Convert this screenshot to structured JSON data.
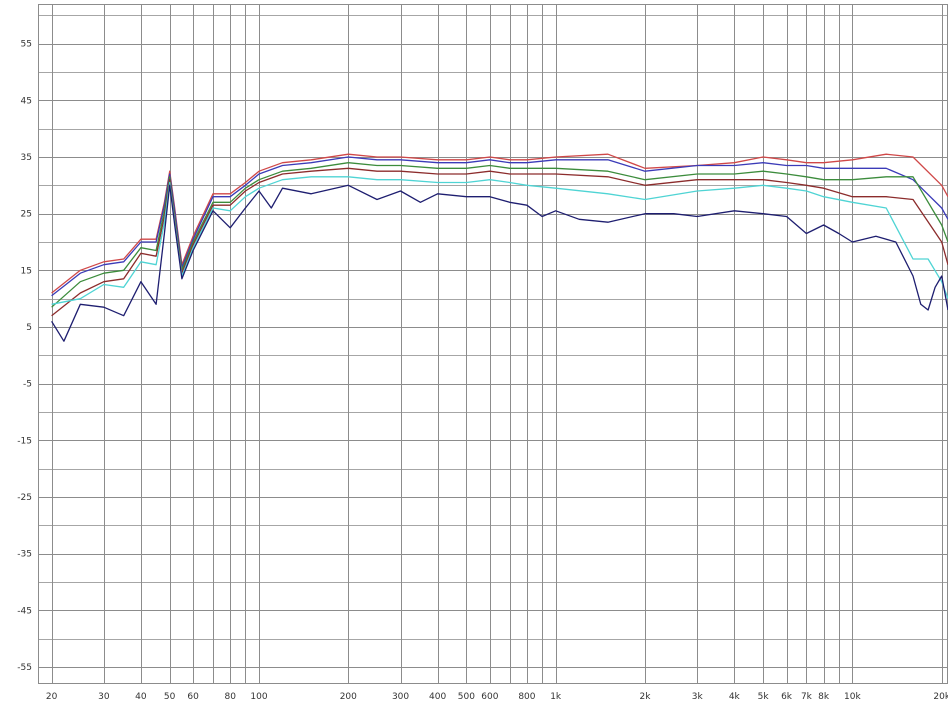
{
  "chart_data": {
    "type": "line",
    "title": "",
    "xlabel": "",
    "ylabel": "",
    "x_scale": "log",
    "xlim": [
      18,
      21000
    ],
    "ylim": [
      -58,
      62
    ],
    "grid": true,
    "legend": "none",
    "x_ticks": [
      {
        "value": 20,
        "label": "20"
      },
      {
        "value": 30,
        "label": "30"
      },
      {
        "value": 40,
        "label": "40"
      },
      {
        "value": 50,
        "label": "50"
      },
      {
        "value": 60,
        "label": "60"
      },
      {
        "value": 80,
        "label": "80"
      },
      {
        "value": 100,
        "label": "100"
      },
      {
        "value": 200,
        "label": "200"
      },
      {
        "value": 300,
        "label": "300"
      },
      {
        "value": 400,
        "label": "400"
      },
      {
        "value": 500,
        "label": "500"
      },
      {
        "value": 600,
        "label": "600"
      },
      {
        "value": 800,
        "label": "800"
      },
      {
        "value": 1000,
        "label": "1k"
      },
      {
        "value": 2000,
        "label": "2k"
      },
      {
        "value": 3000,
        "label": "3k"
      },
      {
        "value": 4000,
        "label": "4k"
      },
      {
        "value": 5000,
        "label": "5k"
      },
      {
        "value": 6000,
        "label": "6k"
      },
      {
        "value": 7000,
        "label": "7k"
      },
      {
        "value": 8000,
        "label": "8k"
      },
      {
        "value": 10000,
        "label": "10k"
      },
      {
        "value": 20000,
        "label": "20k"
      }
    ],
    "x_grid": [
      20,
      30,
      40,
      50,
      60,
      70,
      80,
      90,
      100,
      200,
      300,
      400,
      500,
      600,
      700,
      800,
      900,
      1000,
      2000,
      3000,
      4000,
      5000,
      6000,
      7000,
      8000,
      9000,
      10000,
      20000
    ],
    "y_ticks": [
      {
        "value": 55,
        "label": "55"
      },
      {
        "value": 45,
        "label": "45"
      },
      {
        "value": 35,
        "label": "35"
      },
      {
        "value": 25,
        "label": "25"
      },
      {
        "value": 15,
        "label": "15"
      },
      {
        "value": 5,
        "label": "5"
      },
      {
        "value": -5,
        "label": "-5"
      },
      {
        "value": -15,
        "label": "-15"
      },
      {
        "value": -25,
        "label": "-25"
      },
      {
        "value": -35,
        "label": "-35"
      },
      {
        "value": -45,
        "label": "-45"
      },
      {
        "value": -55,
        "label": "-55"
      }
    ],
    "y_grid": [
      60,
      55,
      50,
      45,
      40,
      35,
      30,
      25,
      20,
      15,
      10,
      5,
      0,
      -5,
      -10,
      -15,
      -20,
      -25,
      -30,
      -35,
      -40,
      -45,
      -50,
      -55
    ],
    "series": [
      {
        "color": "#d04848",
        "x": [
          20,
          25,
          30,
          35,
          40,
          45,
          48,
          50,
          52,
          55,
          60,
          70,
          80,
          90,
          100,
          120,
          150,
          200,
          250,
          300,
          400,
          500,
          600,
          700,
          800,
          1000,
          1500,
          2000,
          3000,
          4000,
          5000,
          6000,
          7000,
          8000,
          10000,
          13000,
          16000,
          20000,
          21000
        ],
        "y": [
          11,
          15,
          16.5,
          17,
          20.5,
          20.5,
          27,
          32.5,
          26,
          16,
          21,
          28.5,
          28.5,
          30.5,
          32.5,
          34,
          34.5,
          35.5,
          35,
          35,
          34.5,
          34.5,
          35,
          34.5,
          34.5,
          35,
          35.5,
          33,
          33.5,
          34,
          35,
          34.5,
          34,
          34,
          34.5,
          35.5,
          35,
          30,
          28
        ]
      },
      {
        "color": "#3b3bb8",
        "x": [
          20,
          25,
          30,
          35,
          40,
          45,
          48,
          50,
          52,
          55,
          60,
          70,
          80,
          90,
          100,
          120,
          150,
          200,
          250,
          300,
          400,
          500,
          600,
          700,
          800,
          1000,
          1500,
          2000,
          3000,
          4000,
          5000,
          6000,
          7000,
          8000,
          10000,
          13000,
          16000,
          20000,
          21000
        ],
        "y": [
          10.5,
          14.5,
          16,
          16.5,
          20,
          20,
          26.5,
          32,
          25.5,
          15.5,
          20.5,
          28,
          28,
          30,
          32,
          33.5,
          34,
          35,
          34.5,
          34.5,
          34,
          34,
          34.5,
          34,
          34,
          34.5,
          34.5,
          32.5,
          33.5,
          33.5,
          34,
          33.5,
          33.5,
          33,
          33,
          33,
          31,
          26,
          24
        ]
      },
      {
        "color": "#3c8c3c",
        "x": [
          20,
          25,
          30,
          35,
          40,
          45,
          48,
          50,
          52,
          55,
          60,
          70,
          80,
          90,
          100,
          120,
          150,
          200,
          250,
          300,
          400,
          500,
          600,
          700,
          800,
          1000,
          1500,
          2000,
          3000,
          4000,
          5000,
          6000,
          7000,
          8000,
          10000,
          13000,
          16000,
          20000,
          21000
        ],
        "y": [
          8.5,
          13,
          14.5,
          15,
          19,
          18.5,
          25.5,
          31.5,
          24.5,
          15,
          20,
          27,
          27,
          29.5,
          31,
          32.5,
          33,
          34,
          33.5,
          33.5,
          33,
          33,
          33.5,
          33,
          33,
          33,
          32.5,
          31,
          32,
          32,
          32.5,
          32,
          31.5,
          31,
          31,
          31.5,
          31.5,
          23,
          20
        ]
      },
      {
        "color": "#8c2c2c",
        "x": [
          20,
          25,
          30,
          35,
          40,
          45,
          48,
          50,
          52,
          55,
          60,
          70,
          80,
          90,
          100,
          120,
          150,
          200,
          250,
          300,
          400,
          500,
          600,
          700,
          800,
          1000,
          1500,
          2000,
          3000,
          4000,
          5000,
          6000,
          7000,
          8000,
          10000,
          13000,
          16000,
          20000,
          21000
        ],
        "y": [
          7,
          11,
          13,
          13.5,
          18,
          17.5,
          24.5,
          31,
          24,
          14.5,
          19.5,
          26.5,
          26.5,
          29,
          30.5,
          32,
          32.5,
          33,
          32.5,
          32.5,
          32,
          32,
          32.5,
          32,
          32,
          32,
          31.5,
          30,
          31,
          31,
          31,
          30.5,
          30,
          29.5,
          28,
          28,
          27.5,
          20,
          16
        ]
      },
      {
        "color": "#4fd4d4",
        "x": [
          20,
          25,
          30,
          35,
          40,
          45,
          48,
          50,
          52,
          55,
          60,
          70,
          80,
          90,
          100,
          120,
          150,
          200,
          250,
          300,
          400,
          500,
          600,
          700,
          800,
          1000,
          1500,
          2000,
          3000,
          4000,
          5000,
          6000,
          7000,
          8000,
          10000,
          13000,
          16000,
          18000,
          20000,
          21000
        ],
        "y": [
          9,
          10,
          12.5,
          12,
          16.5,
          16,
          23.5,
          30.5,
          23.5,
          14,
          19,
          26,
          25.5,
          28,
          29.5,
          31,
          31.5,
          31.5,
          31,
          31,
          30.5,
          30.5,
          31,
          30.5,
          30,
          29.5,
          28.5,
          27.5,
          29,
          29.5,
          30,
          29.5,
          29,
          28,
          27,
          26,
          17,
          17,
          13,
          10
        ]
      },
      {
        "color": "#1e1e70",
        "x": [
          20,
          22,
          25,
          30,
          35,
          40,
          45,
          48,
          50,
          52,
          55,
          60,
          70,
          80,
          90,
          100,
          110,
          120,
          150,
          200,
          250,
          300,
          350,
          400,
          500,
          600,
          700,
          800,
          900,
          1000,
          1200,
          1500,
          2000,
          2500,
          3000,
          4000,
          5000,
          6000,
          7000,
          8000,
          9000,
          10000,
          12000,
          14000,
          16000,
          17000,
          18000,
          19000,
          20000,
          21000
        ],
        "y": [
          6,
          2.5,
          9,
          8.5,
          7,
          13,
          9,
          21.5,
          30,
          23,
          13.5,
          18.5,
          25.5,
          22.5,
          26,
          29,
          26,
          29.5,
          28.5,
          30,
          27.5,
          29,
          27,
          28.5,
          28,
          28,
          27,
          26.5,
          24.5,
          25.5,
          24,
          23.5,
          25,
          25,
          24.5,
          25.5,
          25,
          24.5,
          21.5,
          23,
          21.5,
          20,
          21,
          20,
          14,
          9,
          8,
          12,
          14,
          8
        ]
      }
    ]
  }
}
